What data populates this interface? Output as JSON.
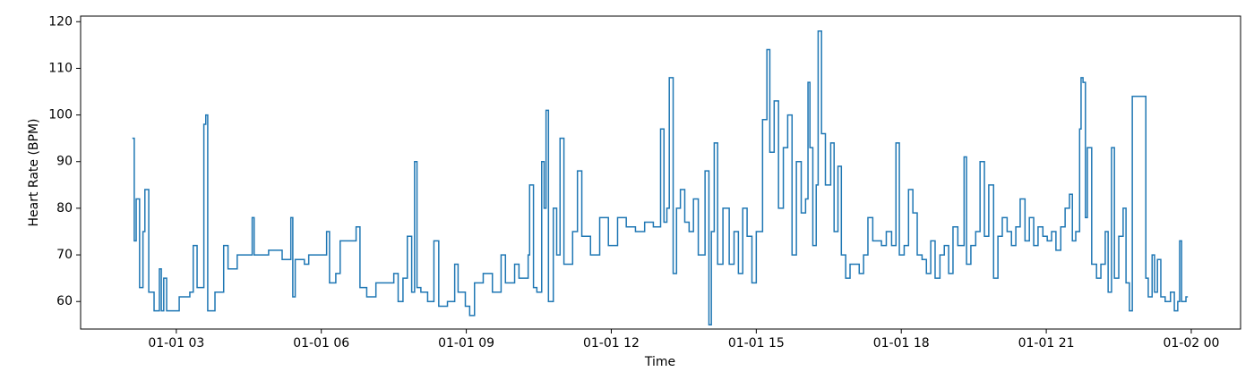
{
  "chart_data": {
    "type": "line",
    "drawstyle": "steps-post",
    "x_label": "Time",
    "y_label": "Heart Rate (BPM)",
    "xlim": [
      1.02,
      25.02
    ],
    "ylim": [
      54.1,
      121.2
    ],
    "xticks": [
      {
        "value": 3,
        "label": "01-01 03"
      },
      {
        "value": 6,
        "label": "01-01 06"
      },
      {
        "value": 9,
        "label": "01-01 09"
      },
      {
        "value": 12,
        "label": "01-01 12"
      },
      {
        "value": 15,
        "label": "01-01 15"
      },
      {
        "value": 18,
        "label": "01-01 18"
      },
      {
        "value": 21,
        "label": "01-01 21"
      },
      {
        "value": 24,
        "label": "01-02 00"
      }
    ],
    "yticks": [
      60,
      70,
      80,
      90,
      100,
      110,
      120
    ],
    "grid": false,
    "series": [
      {
        "color": "#1f77b4",
        "x": [
          2.09,
          2.13,
          2.17,
          2.24,
          2.31,
          2.35,
          2.43,
          2.54,
          2.65,
          2.69,
          2.74,
          2.8,
          3.06,
          3.28,
          3.35,
          3.43,
          3.57,
          3.61,
          3.65,
          3.8,
          3.98,
          4.07,
          4.26,
          4.57,
          4.61,
          4.91,
          5.19,
          5.37,
          5.41,
          5.46,
          5.65,
          5.74,
          6.11,
          6.17,
          6.3,
          6.39,
          6.48,
          6.72,
          6.8,
          6.94,
          7.13,
          7.5,
          7.59,
          7.69,
          7.78,
          7.87,
          7.93,
          7.98,
          8.06,
          8.2,
          8.33,
          8.43,
          8.61,
          8.76,
          8.83,
          8.98,
          9.07,
          9.17,
          9.35,
          9.54,
          9.72,
          9.81,
          10.0,
          10.09,
          10.28,
          10.31,
          10.39,
          10.46,
          10.56,
          10.61,
          10.65,
          10.7,
          10.8,
          10.87,
          10.94,
          11.02,
          11.2,
          11.3,
          11.39,
          11.57,
          11.76,
          11.94,
          12.13,
          12.31,
          12.5,
          12.69,
          12.87,
          13.02,
          13.09,
          13.15,
          13.2,
          13.28,
          13.35,
          13.43,
          13.52,
          13.61,
          13.7,
          13.8,
          13.94,
          14.02,
          14.07,
          14.13,
          14.2,
          14.31,
          14.44,
          14.54,
          14.63,
          14.72,
          14.81,
          14.91,
          15.0,
          15.13,
          15.22,
          15.28,
          15.37,
          15.46,
          15.56,
          15.65,
          15.74,
          15.83,
          15.93,
          16.02,
          16.07,
          16.11,
          16.17,
          16.24,
          16.28,
          16.35,
          16.43,
          16.54,
          16.61,
          16.69,
          16.76,
          16.85,
          16.94,
          17.13,
          17.22,
          17.31,
          17.41,
          17.59,
          17.69,
          17.8,
          17.89,
          17.96,
          18.06,
          18.15,
          18.24,
          18.33,
          18.43,
          18.52,
          18.61,
          18.7,
          18.8,
          18.89,
          18.98,
          19.07,
          19.17,
          19.3,
          19.35,
          19.44,
          19.54,
          19.63,
          19.72,
          19.81,
          19.91,
          20.0,
          20.09,
          20.19,
          20.28,
          20.37,
          20.46,
          20.56,
          20.65,
          20.74,
          20.83,
          20.93,
          21.02,
          21.11,
          21.2,
          21.3,
          21.39,
          21.48,
          21.54,
          21.61,
          21.69,
          21.72,
          21.76,
          21.81,
          21.85,
          21.94,
          22.04,
          22.13,
          22.22,
          22.28,
          22.35,
          22.41,
          22.5,
          22.59,
          22.65,
          22.72,
          22.78,
          23.02,
          23.06,
          23.11,
          23.19,
          23.24,
          23.3,
          23.37,
          23.46,
          23.57,
          23.65,
          23.72,
          23.76,
          23.8,
          23.89,
          23.93
        ],
        "values": [
          95,
          73,
          82,
          63,
          75,
          84,
          62,
          58,
          67,
          58,
          65,
          58,
          61,
          62,
          72,
          63,
          98,
          100,
          58,
          62,
          72,
          67,
          70,
          78,
          70,
          71,
          69,
          78,
          61,
          69,
          68,
          70,
          75,
          64,
          66,
          73,
          73,
          76,
          63,
          61,
          64,
          66,
          60,
          65,
          74,
          62,
          90,
          63,
          62,
          60,
          73,
          59,
          60,
          68,
          62,
          59,
          57,
          64,
          66,
          62,
          70,
          64,
          68,
          65,
          70,
          85,
          63,
          62,
          90,
          80,
          101,
          60,
          80,
          70,
          95,
          68,
          75,
          88,
          74,
          70,
          78,
          72,
          78,
          76,
          75,
          77,
          76,
          97,
          77,
          80,
          108,
          66,
          80,
          84,
          77,
          75,
          82,
          70,
          88,
          55,
          75,
          94,
          68,
          80,
          68,
          75,
          66,
          80,
          74,
          64,
          75,
          99,
          114,
          92,
          103,
          80,
          93,
          100,
          70,
          90,
          79,
          82,
          107,
          93,
          72,
          85,
          118,
          96,
          85,
          94,
          75,
          89,
          70,
          65,
          68,
          66,
          70,
          78,
          73,
          72,
          75,
          72,
          94,
          70,
          72,
          84,
          79,
          70,
          69,
          66,
          73,
          65,
          70,
          72,
          66,
          76,
          72,
          91,
          68,
          72,
          75,
          90,
          74,
          85,
          65,
          74,
          78,
          75,
          72,
          76,
          82,
          73,
          78,
          72,
          76,
          74,
          73,
          75,
          71,
          76,
          80,
          83,
          73,
          75,
          97,
          108,
          107,
          78,
          93,
          68,
          65,
          68,
          75,
          62,
          93,
          65,
          74,
          80,
          64,
          58,
          104,
          104,
          65,
          61,
          70,
          62,
          69,
          61,
          60,
          62,
          58,
          60,
          73,
          60,
          61,
          61
        ]
      }
    ]
  }
}
